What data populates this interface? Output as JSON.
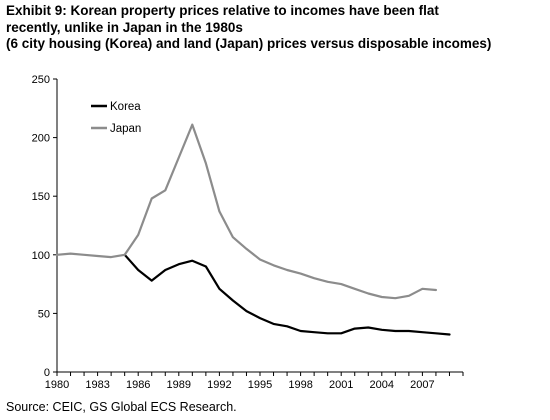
{
  "title_lines": [
    "Exhibit 9: Korean property prices relative to incomes have been flat",
    "recently, unlike in Japan in the 1980s",
    "(6 city housing (Korea) and land (Japan) prices versus disposable incomes)"
  ],
  "source": "Source: CEIC, GS Global ECS Research.",
  "chart_data": {
    "type": "line",
    "xlim": [
      1980,
      2010
    ],
    "ylim": [
      0,
      250
    ],
    "x_ticks": [
      "1980",
      "1983",
      "1986",
      "1989",
      "1992",
      "1995",
      "1998",
      "2001",
      "2004",
      "2007"
    ],
    "y_ticks": [
      "0",
      "50",
      "100",
      "150",
      "200",
      "250"
    ],
    "grid": false,
    "legend_position": "top-left",
    "series": [
      {
        "name": "Korea",
        "color": "#000000",
        "x": [
          1985,
          1986,
          1987,
          1988,
          1989,
          1990,
          1991,
          1992,
          1993,
          1994,
          1995,
          1996,
          1997,
          1998,
          1999,
          2000,
          2001,
          2002,
          2003,
          2004,
          2005,
          2006,
          2007,
          2008,
          2009
        ],
        "values": [
          100,
          87,
          78,
          87,
          92,
          95,
          90,
          71,
          61,
          52,
          46,
          41,
          39,
          35,
          34,
          33,
          33,
          37,
          38,
          36,
          35,
          35,
          34,
          33,
          32
        ]
      },
      {
        "name": "Japan",
        "color": "#8c8c8c",
        "x": [
          1980,
          1981,
          1982,
          1983,
          1984,
          1985,
          1986,
          1987,
          1988,
          1989,
          1990,
          1991,
          1992,
          1993,
          1994,
          1995,
          1996,
          1997,
          1998,
          1999,
          2000,
          2001,
          2002,
          2003,
          2004,
          2005,
          2006,
          2007,
          2008
        ],
        "values": [
          100,
          101,
          100,
          99,
          98,
          100,
          117,
          148,
          155,
          183,
          211,
          178,
          137,
          115,
          105,
          96,
          91,
          87,
          84,
          80,
          77,
          75,
          71,
          67,
          64,
          63,
          65,
          71,
          70
        ]
      }
    ]
  }
}
